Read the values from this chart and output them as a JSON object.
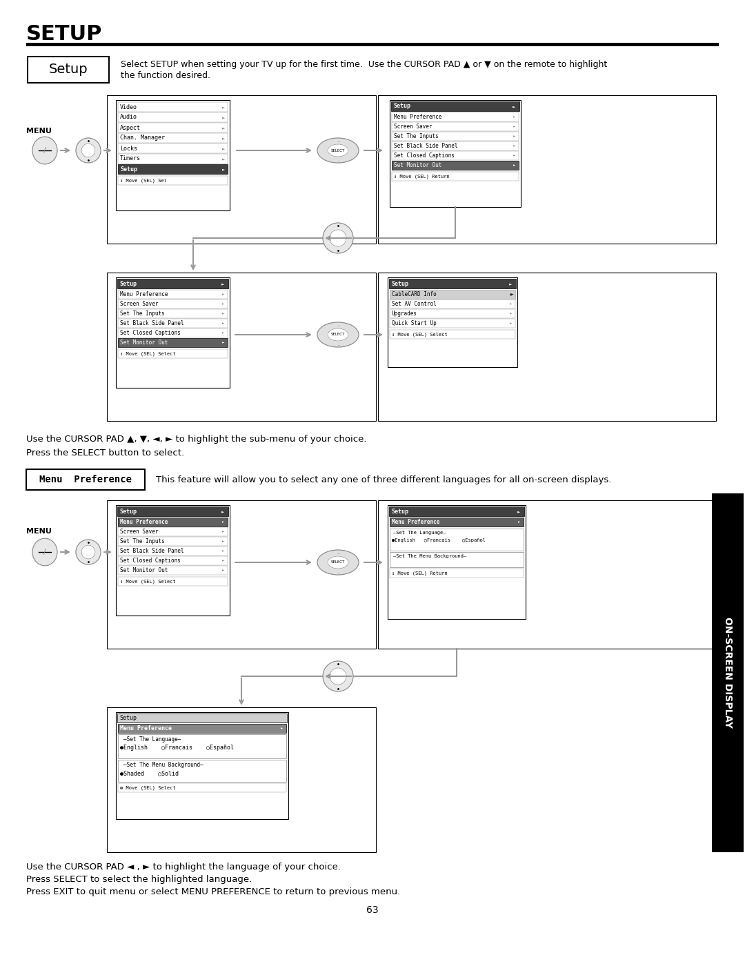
{
  "title": "SETUP",
  "bg_color": "#ffffff",
  "setup_box_text": "Setup",
  "setup_desc_line1": "Select SETUP when setting your TV up for the first time.  Use the CURSOR PAD ▲ or ▼ on the remote to highlight",
  "setup_desc_line2": "the function desired.",
  "cursor_pad_text1": "Use the CURSOR PAD ▲, ▼, ◄, ► to highlight the sub-menu of your choice.",
  "cursor_pad_text2": "Press the SELECT button to select.",
  "menu_pref_box": "Menu  Preference",
  "menu_pref_desc": "This feature will allow you to select any one of three different languages for all on-screen displays.",
  "bottom_text1": "Use the CURSOR PAD ◄ , ► to highlight the language of your choice.",
  "bottom_text2": "Press SELECT to select the highlighted language.",
  "bottom_text3": "Press EXIT to quit menu or select MENU PREFERENCE to return to previous menu.",
  "page_number": "63",
  "on_screen_label": "ON-SCREEN DISPLAY",
  "menu1_items": [
    "Video",
    "Audio",
    "Aspect",
    "Chan. Manager",
    "Locks",
    "Timers",
    "Setup"
  ],
  "menu1_footer": "↕ Move (SEL) Sel",
  "menu2_items": [
    "Menu Preference",
    "Screen Saver",
    "Set The Inputs",
    "Set Black Side Panel",
    "Set Closed Captions",
    "Set Monitor Out"
  ],
  "menu2_footer": "↕ Move (SEL) Return",
  "menu3_items": [
    "Menu Preference",
    "Screen Saver",
    "Set The Inputs",
    "Set Black Side Panel",
    "Set Closed Captions",
    "Set Monitor Out"
  ],
  "menu3_footer": "↕ Move (SEL) Select",
  "menu4_items": [
    "CableCARD Info",
    "Set AV Control",
    "Upgrades",
    "Quick Start Up"
  ],
  "menu4_footer": "↕ Move (SEL) Select",
  "menu5_items": [
    "Menu Preference",
    "Screen Saver",
    "Set The Inputs",
    "Set Black Side Panel",
    "Set Closed Captions",
    "Set Monitor Out"
  ],
  "menu5_footer": "↕ Move (SEL) Select",
  "menu6_footer": "↕ Move (SEL) Return",
  "menu7_footer": "❆ Move (SEL) Select"
}
